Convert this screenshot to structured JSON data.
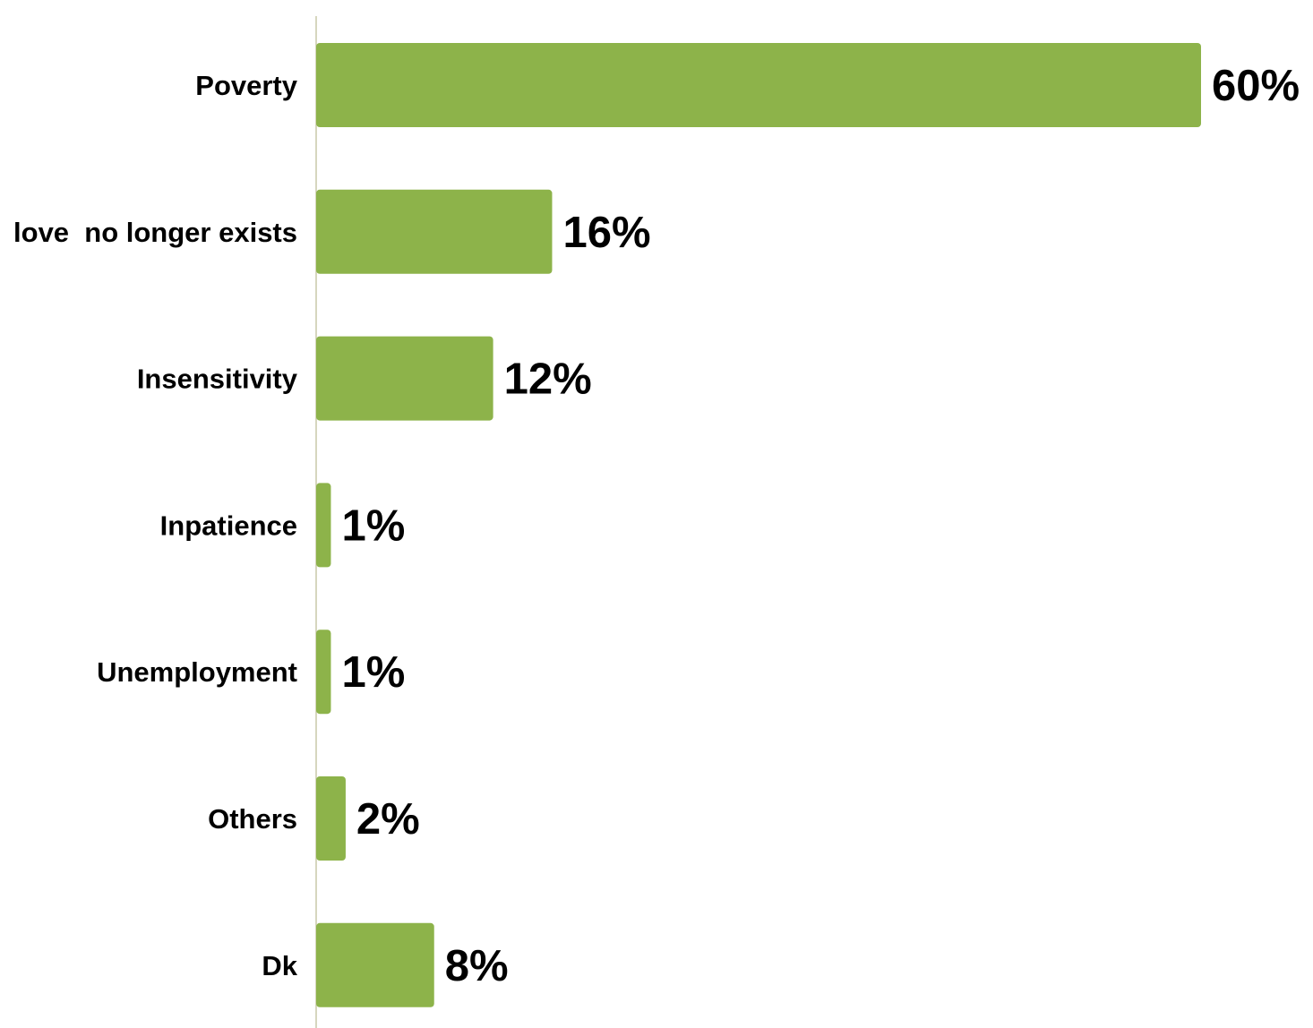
{
  "chart_data": {
    "type": "bar",
    "orientation": "horizontal",
    "categories": [
      "Poverty",
      "love  no longer exists",
      "Insensitivity",
      "Inpatience",
      "Unemployment",
      "Others",
      "Dk"
    ],
    "values": [
      60,
      16,
      12,
      1,
      1,
      2,
      8
    ],
    "data_labels": [
      "60%",
      "16%",
      "12%",
      "1%",
      "1%",
      "2%",
      "8%"
    ],
    "unit": "%",
    "title": "",
    "xlabel": "",
    "ylabel": "",
    "xlim": [
      0,
      60
    ],
    "grid": false,
    "legend": "none",
    "colors": {
      "bar": "#8DB34A",
      "axis": "#C8C8A8",
      "text": "#000000"
    }
  }
}
